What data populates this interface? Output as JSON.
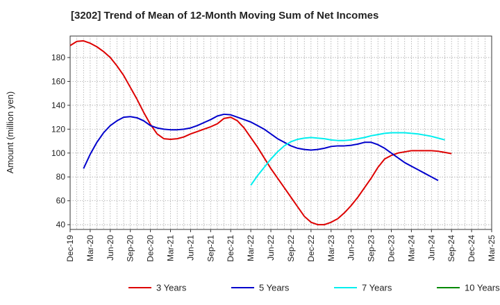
{
  "chart_data": {
    "type": "line",
    "title": "[3202]  Trend of Mean of 12-Month Moving Sum of Net Incomes",
    "ylabel": "Amount (million yen)",
    "xlabel": "",
    "ylim": [
      36,
      198
    ],
    "yticks": [
      40,
      60,
      80,
      100,
      120,
      140,
      160,
      180
    ],
    "x_tick_labels": [
      "Dec-19",
      "Mar-20",
      "Jun-20",
      "Sep-20",
      "Dec-20",
      "Mar-21",
      "Jun-21",
      "Sep-21",
      "Dec-21",
      "Mar-22",
      "Jun-22",
      "Sep-22",
      "Dec-22",
      "Mar-23",
      "Jun-23",
      "Sep-23",
      "Dec-23",
      "Mar-24",
      "Jun-24",
      "Sep-24",
      "Dec-24",
      "Mar-25"
    ],
    "grid": true,
    "legend_position": "bottom",
    "series": [
      {
        "name": "3 Years",
        "color": "#dd0000",
        "start_index": 0,
        "values": [
          190,
          193.5,
          194,
          192,
          189,
          185,
          180,
          173,
          165,
          155,
          145,
          134,
          124,
          116,
          112,
          111.5,
          112,
          113.5,
          116,
          118,
          120,
          122,
          124.5,
          129,
          130,
          127,
          121,
          113,
          105,
          96,
          87,
          79,
          71,
          63,
          55,
          47,
          42,
          40,
          40,
          42,
          45,
          50,
          56,
          63,
          71,
          79,
          88,
          95,
          98,
          100,
          101,
          102,
          102,
          102,
          102,
          101.5,
          100.5,
          99.5
        ]
      },
      {
        "name": "5 Years",
        "color": "#0000cc",
        "start_index": 2,
        "values": [
          87,
          99,
          109,
          117,
          123,
          127,
          130,
          130.5,
          129.5,
          127,
          123,
          121,
          120,
          119.5,
          119.5,
          120,
          121,
          123,
          125.5,
          128,
          131,
          132.5,
          132,
          130,
          128,
          126,
          123,
          120,
          116,
          112,
          109,
          106,
          104,
          103,
          102.5,
          103,
          104,
          105.5,
          106,
          106,
          106.5,
          107.5,
          109,
          109,
          107,
          104,
          100,
          96,
          92,
          89,
          86,
          83,
          80,
          77
        ]
      },
      {
        "name": "7 Years",
        "color": "#00eeee",
        "start_index": 27,
        "values": [
          73,
          81,
          88,
          95,
          101,
          106,
          109.5,
          111.5,
          112.5,
          113,
          112.5,
          112,
          111,
          110.5,
          110.5,
          111,
          112,
          113,
          114.5,
          115.5,
          116.5,
          117,
          117,
          117,
          116.5,
          116,
          115,
          114,
          112.5,
          111
        ]
      },
      {
        "name": "10 Years",
        "color": "#008800",
        "start_index": 0,
        "values": []
      }
    ]
  }
}
